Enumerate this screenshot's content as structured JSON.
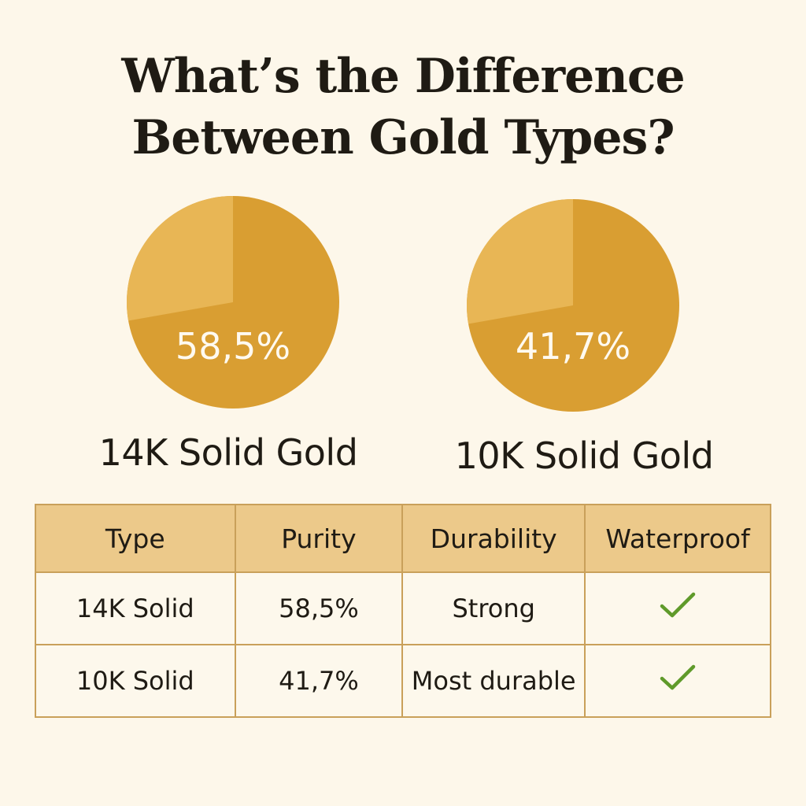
{
  "title_line1": "What’s the Difference",
  "title_line2": "Between Gold Types?",
  "colors": {
    "background": "#fdf7ea",
    "gold_dark": "#d99e32",
    "gold_light": "#e8b655",
    "header_bg": "#ecc98a",
    "border": "#c9a05a",
    "check": "#5f9a2a"
  },
  "chart_data": [
    {
      "type": "pie",
      "label": "14K Solid Gold",
      "value_label": "58,5%",
      "value": 58.5
    },
    {
      "type": "pie",
      "label": "10K Solid Gold",
      "value_label": "41,7%",
      "value": 41.7
    }
  ],
  "table": {
    "headers": [
      "Type",
      "Purity",
      "Durability",
      "Waterproof"
    ],
    "rows": [
      {
        "type": "14K Solid",
        "purity": "58,5%",
        "durability": "Strong",
        "waterproof": "check-icon"
      },
      {
        "type": "10K Solid",
        "purity": "41,7%",
        "durability": "Most durable",
        "waterproof": "check-icon"
      }
    ]
  }
}
